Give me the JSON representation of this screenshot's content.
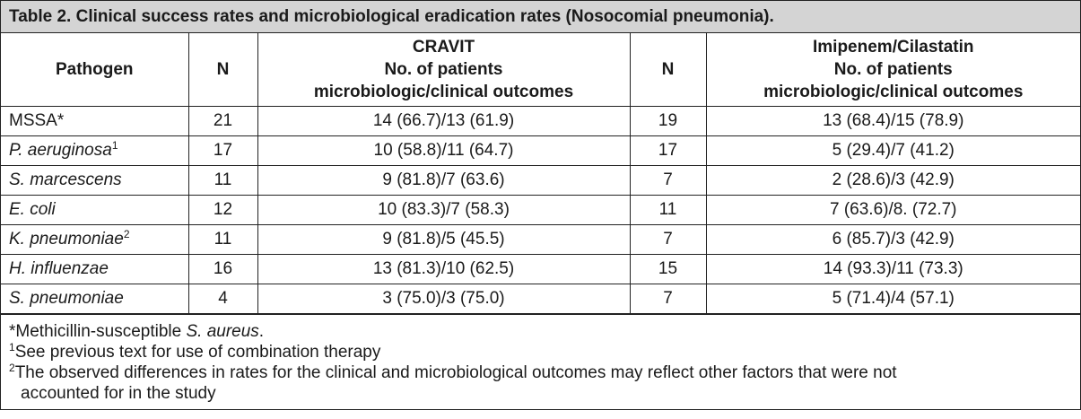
{
  "caption": "Table 2. Clinical success rates and microbiological eradication rates (Nosocomial pneumonia).",
  "headers": {
    "pathogen": "Pathogen",
    "n1": "N",
    "cravit": [
      "CRAVIT",
      "No. of patients",
      "microbiologic/clinical outcomes"
    ],
    "n2": "N",
    "imipenem": [
      "Imipenem/Cilastatin",
      "No. of patients",
      "microbiologic/clinical outcomes"
    ]
  },
  "rows": [
    {
      "pathogen": "MSSA*",
      "italic": false,
      "sup": "",
      "n1": "21",
      "cravit": "14 (66.7)/13 (61.9)",
      "n2": "19",
      "imipenem": "13 (68.4)/15 (78.9)"
    },
    {
      "pathogen": "P. aeruginosa",
      "italic": true,
      "sup": "1",
      "n1": "17",
      "cravit": "10 (58.8)/11 (64.7)",
      "n2": "17",
      "imipenem": "5 (29.4)/7 (41.2)"
    },
    {
      "pathogen": "S. marcescens",
      "italic": true,
      "sup": "",
      "n1": "11",
      "cravit": "9 (81.8)/7 (63.6)",
      "n2": "7",
      "imipenem": "2 (28.6)/3 (42.9)"
    },
    {
      "pathogen": "E. coli",
      "italic": true,
      "sup": "",
      "n1": "12",
      "cravit": "10 (83.3)/7 (58.3)",
      "n2": "11",
      "imipenem": "7 (63.6)/8. (72.7)"
    },
    {
      "pathogen": "K. pneumoniae",
      "italic": true,
      "sup": "2",
      "n1": "11",
      "cravit": "9 (81.8)/5 (45.5)",
      "n2": "7",
      "imipenem": "6 (85.7)/3 (42.9)"
    },
    {
      "pathogen": "H. influenzae",
      "italic": true,
      "sup": "",
      "n1": "16",
      "cravit": "13 (81.3)/10 (62.5)",
      "n2": "15",
      "imipenem": "14 (93.3)/11 (73.3)"
    },
    {
      "pathogen": "S. pneumoniae",
      "italic": true,
      "sup": "",
      "n1": "4",
      "cravit": "3 (75.0)/3 (75.0)",
      "n2": "7",
      "imipenem": "5 (71.4)/4 (57.1)"
    }
  ],
  "footnotes": {
    "note1_prefix": "*Methicillin-susceptible ",
    "note1_italic": "S. aureus",
    "note1_suffix": ".",
    "note2_mark": "1",
    "note2_text": "See previous text for use of combination therapy",
    "note3_mark": "2",
    "note3_text_line1": "The observed differences in rates for the clinical and microbiological outcomes may reflect other factors that were not",
    "note3_text_line2": "accounted for in the study"
  }
}
